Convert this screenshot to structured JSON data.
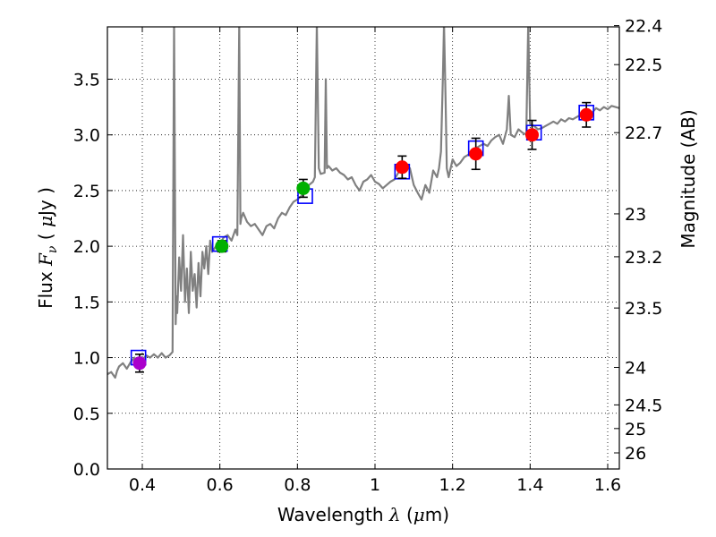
{
  "chart_data": {
    "type": "scatter",
    "x_range": [
      0.31,
      1.63
    ],
    "y_range": [
      0.0,
      3.97
    ],
    "xticks": [
      {
        "value": 0.4,
        "label": "0.4"
      },
      {
        "value": 0.6,
        "label": "0.6"
      },
      {
        "value": 0.8,
        "label": "0.8"
      },
      {
        "value": 1.0,
        "label": "1"
      },
      {
        "value": 1.2,
        "label": "1.2"
      },
      {
        "value": 1.4,
        "label": "1.4"
      },
      {
        "value": 1.6,
        "label": "1.6"
      }
    ],
    "yticks": [
      {
        "value": 0.0,
        "label": "0.0"
      },
      {
        "value": 0.5,
        "label": "0.5"
      },
      {
        "value": 1.0,
        "label": "1.0"
      },
      {
        "value": 1.5,
        "label": "1.5"
      },
      {
        "value": 2.0,
        "label": "2.0"
      },
      {
        "value": 2.5,
        "label": "2.5"
      },
      {
        "value": 3.0,
        "label": "3.0"
      },
      {
        "value": 3.5,
        "label": "3.5"
      }
    ],
    "right_ticks": [
      {
        "value": 22.4,
        "label": "22.4"
      },
      {
        "value": 22.5,
        "label": "22.5"
      },
      {
        "value": 22.7,
        "label": "22.7"
      },
      {
        "value": 23.0,
        "label": "23"
      },
      {
        "value": 23.2,
        "label": "23.2"
      },
      {
        "value": 23.5,
        "label": "23.5"
      },
      {
        "value": 24.0,
        "label": "24"
      },
      {
        "value": 24.5,
        "label": "24.5"
      },
      {
        "value": 25.0,
        "label": "25"
      },
      {
        "value": 26.0,
        "label": "26"
      }
    ],
    "xlabel": {
      "pre": "Wavelength ",
      "sym": "λ",
      "post": " (",
      "mu": "μ",
      "unit": "m)"
    },
    "ylabel": {
      "pre": "Flux ",
      "sym": "F",
      "sub": "ν",
      "post": " ( ",
      "mu": "μ",
      "unit": "Jy )"
    },
    "right_label": "Magnitude (AB)",
    "grid": true,
    "colors": {
      "spectrum": "#808080",
      "model_box": "#0000ff",
      "errorbar": "#000000",
      "purple": "#aa00cc",
      "green": "#00b000",
      "red": "#ff0000"
    },
    "model_series": {
      "marker": "open-square",
      "x": [
        0.39,
        0.6,
        0.82,
        1.07,
        1.26,
        1.41,
        1.545
      ],
      "y": [
        1.0,
        2.02,
        2.45,
        2.67,
        2.88,
        3.02,
        3.2
      ]
    },
    "observed_series": [
      {
        "x": 0.393,
        "y": 0.95,
        "err": 0.08,
        "color": "purple"
      },
      {
        "x": 0.605,
        "y": 2.0,
        "err": 0.05,
        "color": "green"
      },
      {
        "x": 0.815,
        "y": 2.52,
        "err": 0.08,
        "color": "green"
      },
      {
        "x": 1.07,
        "y": 2.71,
        "err": 0.1,
        "color": "red"
      },
      {
        "x": 1.26,
        "y": 2.83,
        "err": 0.14,
        "color": "red"
      },
      {
        "x": 1.405,
        "y": 3.0,
        "err": 0.13,
        "color": "red"
      },
      {
        "x": 1.545,
        "y": 3.18,
        "err": 0.11,
        "color": "red"
      }
    ],
    "spectrum": {
      "x": [
        0.31,
        0.32,
        0.33,
        0.335,
        0.34,
        0.35,
        0.36,
        0.37,
        0.38,
        0.39,
        0.4,
        0.41,
        0.42,
        0.43,
        0.44,
        0.45,
        0.46,
        0.47,
        0.478,
        0.482,
        0.486,
        0.488,
        0.49,
        0.495,
        0.5,
        0.505,
        0.51,
        0.515,
        0.52,
        0.525,
        0.53,
        0.535,
        0.54,
        0.545,
        0.55,
        0.555,
        0.56,
        0.565,
        0.57,
        0.575,
        0.58,
        0.59,
        0.6,
        0.61,
        0.62,
        0.63,
        0.64,
        0.645,
        0.65,
        0.653,
        0.655,
        0.66,
        0.67,
        0.68,
        0.69,
        0.7,
        0.71,
        0.72,
        0.73,
        0.74,
        0.75,
        0.76,
        0.77,
        0.78,
        0.79,
        0.8,
        0.81,
        0.82,
        0.83,
        0.84,
        0.845,
        0.85,
        0.855,
        0.86,
        0.87,
        0.873,
        0.876,
        0.88,
        0.885,
        0.89,
        0.9,
        0.91,
        0.92,
        0.93,
        0.94,
        0.95,
        0.96,
        0.97,
        0.98,
        0.99,
        1.0,
        1.01,
        1.02,
        1.03,
        1.04,
        1.05,
        1.06,
        1.08,
        1.09,
        1.1,
        1.11,
        1.12,
        1.13,
        1.14,
        1.15,
        1.16,
        1.165,
        1.17,
        1.175,
        1.178,
        1.182,
        1.185,
        1.19,
        1.2,
        1.21,
        1.22,
        1.23,
        1.24,
        1.25,
        1.26,
        1.27,
        1.28,
        1.29,
        1.3,
        1.31,
        1.32,
        1.33,
        1.34,
        1.345,
        1.35,
        1.36,
        1.37,
        1.38,
        1.39,
        1.395,
        1.4,
        1.41,
        1.42,
        1.43,
        1.44,
        1.45,
        1.46,
        1.47,
        1.48,
        1.49,
        1.5,
        1.51,
        1.52,
        1.53,
        1.54,
        1.55,
        1.56,
        1.57,
        1.58,
        1.59,
        1.6,
        1.61,
        1.62,
        1.63
      ],
      "y": [
        0.85,
        0.87,
        0.82,
        0.88,
        0.92,
        0.95,
        0.9,
        0.96,
        1.0,
        0.93,
        0.98,
        1.02,
        1.0,
        1.03,
        1.0,
        1.04,
        1.0,
        1.02,
        1.05,
        4.0,
        1.3,
        1.55,
        1.4,
        1.9,
        1.6,
        2.1,
        1.5,
        1.8,
        1.4,
        1.95,
        1.6,
        1.75,
        1.45,
        1.85,
        1.55,
        1.95,
        1.8,
        2.0,
        1.75,
        2.05,
        1.95,
        2.0,
        2.02,
        2.08,
        2.1,
        2.05,
        2.15,
        2.1,
        4.0,
        2.2,
        2.25,
        2.3,
        2.22,
        2.18,
        2.2,
        2.15,
        2.1,
        2.18,
        2.2,
        2.16,
        2.25,
        2.3,
        2.28,
        2.35,
        2.4,
        2.42,
        2.45,
        2.5,
        2.55,
        2.58,
        2.62,
        4.0,
        2.7,
        2.65,
        2.66,
        3.5,
        2.7,
        2.72,
        2.7,
        2.68,
        2.7,
        2.66,
        2.64,
        2.6,
        2.62,
        2.55,
        2.5,
        2.58,
        2.6,
        2.64,
        2.58,
        2.56,
        2.52,
        2.55,
        2.58,
        2.6,
        2.66,
        2.72,
        2.7,
        2.55,
        2.48,
        2.42,
        2.55,
        2.48,
        2.68,
        2.62,
        2.7,
        2.85,
        3.5,
        4.0,
        3.3,
        2.7,
        2.62,
        2.78,
        2.72,
        2.75,
        2.8,
        2.82,
        2.85,
        2.88,
        2.9,
        2.92,
        2.9,
        2.95,
        2.98,
        3.0,
        2.92,
        3.05,
        3.35,
        3.0,
        2.98,
        3.05,
        3.02,
        3.0,
        4.0,
        3.1,
        3.08,
        3.05,
        3.06,
        3.08,
        3.1,
        3.12,
        3.1,
        3.14,
        3.12,
        3.15,
        3.14,
        3.16,
        3.18,
        3.2,
        3.22,
        3.2,
        3.24,
        3.22,
        3.25,
        3.23,
        3.26,
        3.25,
        3.24
      ]
    }
  }
}
